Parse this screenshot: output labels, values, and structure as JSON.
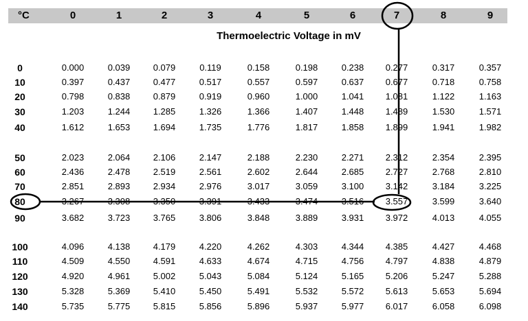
{
  "table": {
    "unit_header": "°C",
    "column_headers": [
      "0",
      "1",
      "2",
      "3",
      "4",
      "5",
      "6",
      "7",
      "8",
      "9"
    ],
    "title": "Thermoelectric Voltage in mV",
    "groups": [
      {
        "rows": [
          {
            "label": "0",
            "values": [
              "0.000",
              "0.039",
              "0.079",
              "0.119",
              "0.158",
              "0.198",
              "0.238",
              "0.277",
              "0.317",
              "0.357"
            ]
          },
          {
            "label": "10",
            "values": [
              "0.397",
              "0.437",
              "0.477",
              "0.517",
              "0.557",
              "0.597",
              "0.637",
              "0.677",
              "0.718",
              "0.758"
            ]
          },
          {
            "label": "20",
            "values": [
              "0.798",
              "0.838",
              "0.879",
              "0.919",
              "0.960",
              "1.000",
              "1.041",
              "1.081",
              "1.122",
              "1.163"
            ]
          },
          {
            "label": "30",
            "values": [
              "1.203",
              "1.244",
              "1.285",
              "1.326",
              "1.366",
              "1.407",
              "1.448",
              "1.489",
              "1.530",
              "1.571"
            ]
          },
          {
            "label": "40",
            "values": [
              "1.612",
              "1.653",
              "1.694",
              "1.735",
              "1.776",
              "1.817",
              "1.858",
              "1.899",
              "1.941",
              "1.982"
            ]
          }
        ]
      },
      {
        "rows": [
          {
            "label": "50",
            "values": [
              "2.023",
              "2.064",
              "2.106",
              "2.147",
              "2.188",
              "2.230",
              "2.271",
              "2.312",
              "2.354",
              "2.395"
            ]
          },
          {
            "label": "60",
            "values": [
              "2.436",
              "2.478",
              "2.519",
              "2.561",
              "2.602",
              "2.644",
              "2.685",
              "2.727",
              "2.768",
              "2.810"
            ]
          },
          {
            "label": "70",
            "values": [
              "2.851",
              "2.893",
              "2.934",
              "2.976",
              "3.017",
              "3.059",
              "3.100",
              "3.142",
              "3.184",
              "3.225"
            ]
          },
          {
            "label": "80",
            "values": [
              "3.267",
              "3.308",
              "3.350",
              "3.391",
              "3.433",
              "3.474",
              "3.516",
              "3.557",
              "3.599",
              "3.640"
            ]
          },
          {
            "label": "90",
            "values": [
              "3.682",
              "3.723",
              "3.765",
              "3.806",
              "3.848",
              "3.889",
              "3.931",
              "3.972",
              "4.013",
              "4.055"
            ]
          }
        ]
      },
      {
        "rows": [
          {
            "label": "100",
            "values": [
              "4.096",
              "4.138",
              "4.179",
              "4.220",
              "4.262",
              "4.303",
              "4.344",
              "4.385",
              "4.427",
              "4.468"
            ]
          },
          {
            "label": "110",
            "values": [
              "4.509",
              "4.550",
              "4.591",
              "4.633",
              "4.674",
              "4.715",
              "4.756",
              "4.797",
              "4.838",
              "4.879"
            ]
          },
          {
            "label": "120",
            "values": [
              "4.920",
              "4.961",
              "5.002",
              "5.043",
              "5.084",
              "5.124",
              "5.165",
              "5.206",
              "5.247",
              "5.288"
            ]
          },
          {
            "label": "130",
            "values": [
              "5.328",
              "5.369",
              "5.410",
              "5.450",
              "5.491",
              "5.532",
              "5.572",
              "5.613",
              "5.653",
              "5.694"
            ]
          },
          {
            "label": "140",
            "values": [
              "5.735",
              "5.775",
              "5.815",
              "5.856",
              "5.896",
              "5.937",
              "5.977",
              "6.017",
              "6.058",
              "6.098"
            ]
          }
        ]
      }
    ],
    "highlight": {
      "column_header": "7",
      "row_label": "80",
      "value": "3.557"
    }
  },
  "colors": {
    "header_background": "#c8c8c8",
    "annotation_stroke": "#000000"
  }
}
